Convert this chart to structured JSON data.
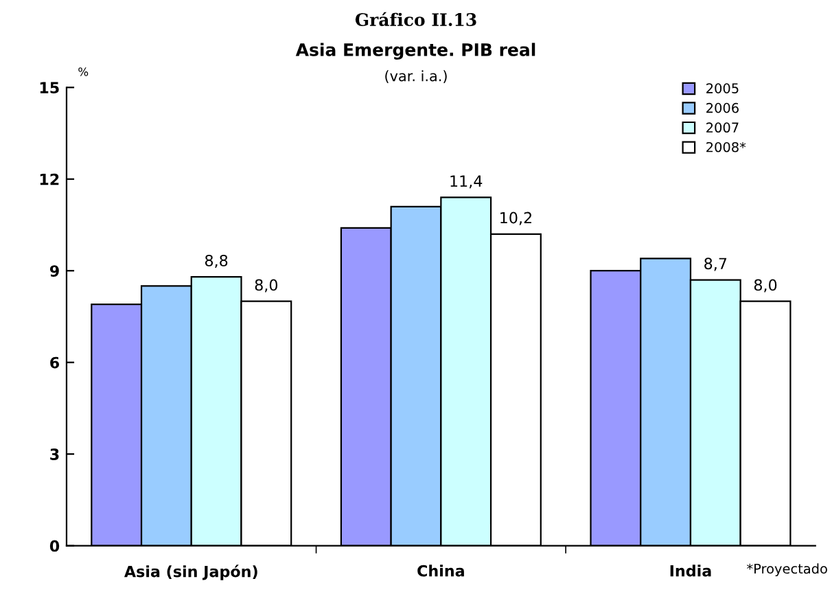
{
  "chart_data": {
    "type": "bar",
    "title": "Gráfico II.13",
    "subtitle": "Asia Emergente. PIB real",
    "annotations": [
      "(var. i.a.)",
      "*Proyectado"
    ],
    "ylabel": "%",
    "categories": [
      "Asia (sin Japón)",
      "China",
      "India"
    ],
    "series": [
      {
        "name": "2005",
        "color": "#9999ff",
        "values": [
          7.9,
          10.4,
          9.0
        ]
      },
      {
        "name": "2006",
        "color": "#99ccff",
        "values": [
          8.5,
          11.1,
          9.4
        ]
      },
      {
        "name": "2007",
        "color": "#ccffff",
        "values": [
          8.8,
          11.4,
          8.7
        ],
        "value_labels": [
          "8,8",
          "11,4",
          "8,7"
        ]
      },
      {
        "name": "2008*",
        "color": "#ffffff",
        "values": [
          8.0,
          10.2,
          8.0
        ],
        "value_labels": [
          "8,0",
          "10,2",
          "8,0"
        ]
      }
    ],
    "ylim": [
      0,
      15
    ],
    "yticks": [
      0,
      3,
      6,
      9,
      12,
      15
    ],
    "grid": false,
    "legend": "top right"
  }
}
